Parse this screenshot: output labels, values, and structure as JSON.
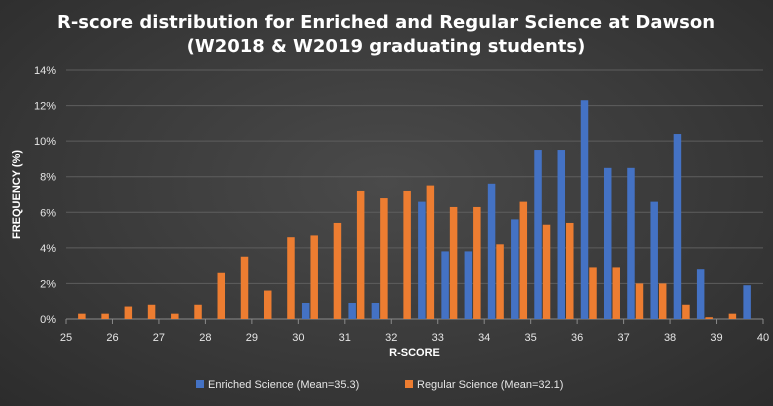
{
  "chart_data": {
    "type": "bar",
    "title_lines": [
      "R-score distribution for Enriched and Regular Science at Dawson",
      "(W2018 & W2019 graduating students)"
    ],
    "xlabel": "R-SCORE",
    "ylabel": "FREQUENCY (%)",
    "x_ticks": [
      25,
      26,
      27,
      28,
      29,
      30,
      31,
      32,
      33,
      34,
      35,
      36,
      37,
      38,
      39,
      40
    ],
    "xlim": [
      25,
      40
    ],
    "y_ticks": [
      "0%",
      "2%",
      "4%",
      "6%",
      "8%",
      "10%",
      "12%",
      "14%"
    ],
    "ylim": [
      0,
      14
    ],
    "grid": true,
    "legend_position": "bottom",
    "bin_width": 0.5,
    "series": [
      {
        "name": "Enriched Science (Mean=35.3)",
        "color": "#4472c4",
        "values": [
          0,
          0,
          0,
          0,
          0,
          0,
          0,
          0,
          0,
          0,
          0.9,
          0,
          0.9,
          0.9,
          0,
          6.6,
          3.8,
          3.8,
          7.6,
          5.6,
          9.5,
          9.5,
          12.3,
          8.5,
          8.5,
          6.6,
          10.4,
          2.8,
          0,
          1.9
        ]
      },
      {
        "name": "Regular Science (Mean=32.1)",
        "color": "#ed7d31",
        "values": [
          0.3,
          0.3,
          0.7,
          0.8,
          0.3,
          0.8,
          2.6,
          3.5,
          1.6,
          4.6,
          4.7,
          5.4,
          7.2,
          6.8,
          7.2,
          7.5,
          6.3,
          6.3,
          4.2,
          6.6,
          5.3,
          5.4,
          2.9,
          2.9,
          2.0,
          2.0,
          0.8,
          0.1,
          0.3,
          0
        ]
      }
    ]
  }
}
